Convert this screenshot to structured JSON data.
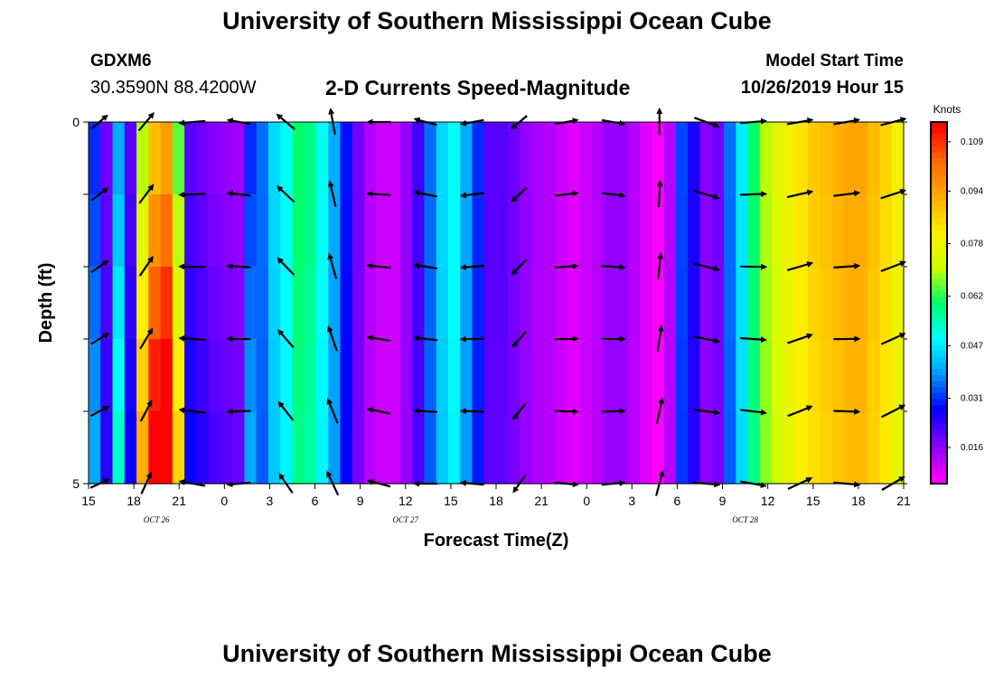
{
  "header": {
    "title": "University of Southern Mississippi Ocean Cube",
    "station_id": "GDXM6",
    "station_coords": "30.3590N 88.4200W",
    "plot_title": "2-D Currents Speed-Magnitude",
    "model_label": "Model Start Time",
    "model_time": "10/26/2019 Hour 15"
  },
  "footer": {
    "title": "University of Southern Mississippi Ocean Cube"
  },
  "chart_data": {
    "type": "heatmap",
    "xlabel": "Forecast Time(Z)",
    "ylabel": "Depth (ft)",
    "x_tick_labels": [
      "15",
      "18",
      "21",
      "0",
      "3",
      "6",
      "9",
      "12",
      "15",
      "18",
      "21",
      "0",
      "3",
      "6",
      "9",
      "12",
      "15",
      "18",
      "21"
    ],
    "y_tick_labels": [
      "0",
      "5"
    ],
    "ylim": [
      0,
      5
    ],
    "date_labels": [
      {
        "label": "OCT 26",
        "after_tick": 1.5
      },
      {
        "label": "OCT 27",
        "after_tick": 7
      },
      {
        "label": "OCT 28",
        "after_tick": 14.5
      }
    ],
    "colorbar": {
      "title": "Knots",
      "ticks": [
        "0.016",
        "0.031",
        "0.047",
        "0.062",
        "0.078",
        "0.094",
        "0.109"
      ],
      "colors": [
        "#ff00ff",
        "#8800ff",
        "#0000ff",
        "#0099ff",
        "#00ffff",
        "#00ff66",
        "#ccff00",
        "#ffee00",
        "#ffaa00",
        "#ff6600",
        "#ff0000"
      ]
    },
    "depth_levels": [
      0,
      1,
      2,
      3,
      4,
      5
    ],
    "speed_profile_knots": [
      0.03,
      0.018,
      0.04,
      0.02,
      0.07,
      0.09,
      0.095,
      0.065,
      0.02,
      0.018,
      0.016,
      0.015,
      0.014,
      0.03,
      0.035,
      0.045,
      0.05,
      0.06,
      0.058,
      0.05,
      0.04,
      0.028,
      0.018,
      0.012,
      0.01,
      0.01,
      0.015,
      0.022,
      0.035,
      0.045,
      0.05,
      0.04,
      0.03,
      0.02,
      0.02,
      0.018,
      0.015,
      0.013,
      0.012,
      0.01,
      0.008,
      0.01,
      0.012,
      0.015,
      0.015,
      0.012,
      0.008,
      0.005,
      0.012,
      0.032,
      0.025,
      0.016,
      0.018,
      0.035,
      0.047,
      0.06,
      0.07,
      0.076,
      0.08,
      0.084,
      0.088,
      0.09,
      0.092,
      0.094,
      0.094,
      0.09,
      0.086,
      0.08
    ],
    "arrow_direction_deg": [
      40,
      45,
      35,
      50,
      170,
      60,
      175,
      185,
      190,
      195,
      175,
      170,
      165,
      160,
      150,
      140,
      35,
      30,
      100,
      60,
      170,
      175,
      180,
      180,
      175,
      170,
      165,
      170,
      175,
      180,
      190,
      200,
      210,
      215,
      220,
      225,
      180,
      10,
      5,
      0,
      355,
      350,
      340,
      10,
      45,
      90,
      30,
      40,
      -30,
      -20,
      -10,
      0,
      5,
      10,
      15,
      20,
      10,
      5,
      0,
      5,
      10,
      15,
      20,
      25,
      15,
      10,
      5,
      0
    ],
    "arrow_length_knots": [
      0.035,
      0.035,
      0.035,
      0.04,
      0.045,
      0.035,
      0.045,
      0.045,
      0.045,
      0.045,
      0.04,
      0.04,
      0.04,
      0.04,
      0.04,
      0.04,
      0.04,
      0.04,
      0.045,
      0.045,
      0.045,
      0.045,
      0.04,
      0.04,
      0.04,
      0.04,
      0.04,
      0.04,
      0.04,
      0.04,
      0.04,
      0.04,
      0.04,
      0.035,
      0.035,
      0.035,
      0.045,
      0.04,
      0.04,
      0.04,
      0.04,
      0.04,
      0.04,
      0.04,
      0.045,
      0.045,
      0.045,
      0.045,
      0.045,
      0.045,
      0.045,
      0.045,
      0.045,
      0.045,
      0.045,
      0.045,
      0.045,
      0.045,
      0.045,
      0.045,
      0.045,
      0.045,
      0.045,
      0.045,
      0.045,
      0.045,
      0.045,
      0.045
    ]
  }
}
